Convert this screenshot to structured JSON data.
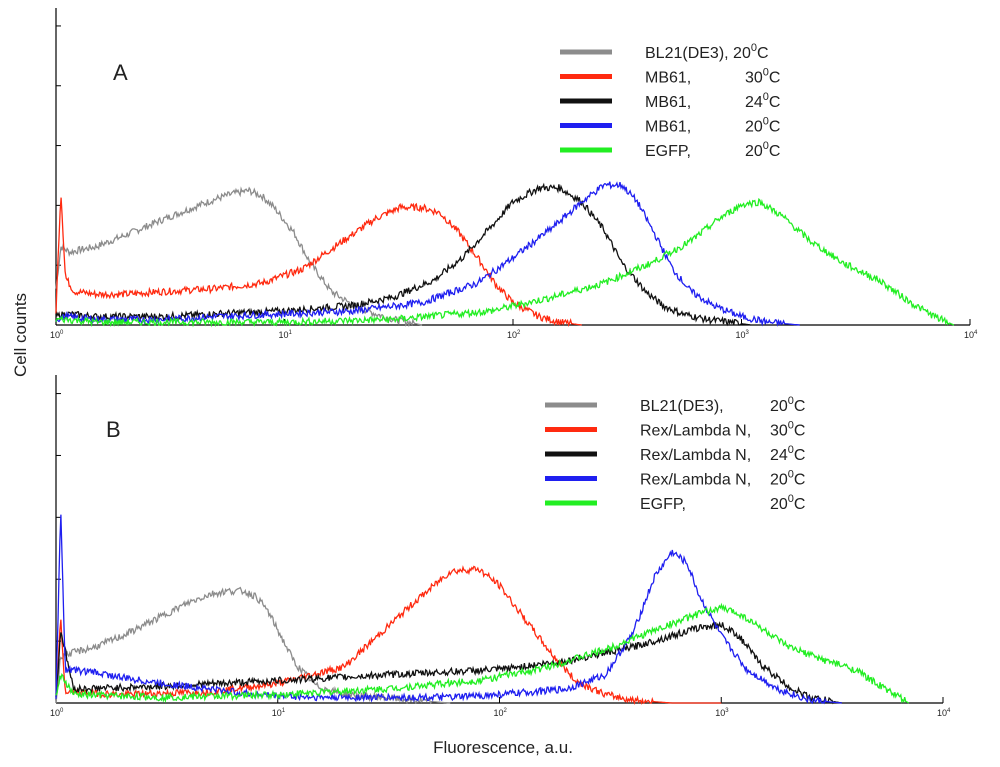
{
  "figure": {
    "ylabel": "Cell counts",
    "xlabel": "Fluorescence, a.u."
  },
  "chart_data": [
    {
      "type": "line",
      "panel_label": "A",
      "xscale": "log",
      "xlim": [
        1,
        10000
      ],
      "ylim": [
        0,
        1
      ],
      "x_tick_labels": [
        "10",
        "10",
        "10",
        "10",
        "10"
      ],
      "x_tick_exponents": [
        "0",
        "1",
        "2",
        "3",
        "4"
      ],
      "legend_position": "top-right",
      "grid": false,
      "series": [
        {
          "name": "BL21(DE3), 20",
          "name_sup": "0",
          "name_end": "C",
          "color": "#8c8c8c",
          "x": [
            1.0,
            1.05,
            1.15,
            1.3,
            1.5,
            2.0,
            3.0,
            4.0,
            5.0,
            6.0,
            7.0,
            8.0,
            9.0,
            11.0,
            13.0,
            16.0,
            20.0,
            25.0,
            30.0,
            40.0
          ],
          "y": [
            0.13,
            0.28,
            0.26,
            0.27,
            0.28,
            0.32,
            0.38,
            0.42,
            0.45,
            0.47,
            0.48,
            0.46,
            0.42,
            0.33,
            0.22,
            0.12,
            0.07,
            0.04,
            0.02,
            0.0
          ]
        },
        {
          "name": "MB61,",
          "name_sup": "0",
          "name_mid": "30",
          "name_end": "C",
          "color": "#ff2a10",
          "x": [
            1.0,
            1.05,
            1.1,
            1.2,
            1.5,
            2.0,
            3.0,
            5.0,
            8.0,
            12.0,
            18.0,
            25.0,
            32.0,
            40.0,
            48.0,
            58.0,
            70.0,
            85.0,
            100.0,
            130.0,
            160.0,
            200.0
          ],
          "y": [
            0.05,
            0.48,
            0.17,
            0.12,
            0.11,
            0.11,
            0.12,
            0.13,
            0.15,
            0.2,
            0.3,
            0.38,
            0.42,
            0.42,
            0.4,
            0.33,
            0.24,
            0.14,
            0.08,
            0.03,
            0.01,
            0.0
          ]
        },
        {
          "name": "MB61,",
          "name_sup": "0",
          "name_mid": "24",
          "name_end": "C",
          "color": "#111111",
          "x": [
            1.0,
            1.1,
            1.5,
            3.0,
            5.0,
            10.0,
            20.0,
            30.0,
            45.0,
            60.0,
            80.0,
            100.0,
            130.0,
            160.0,
            200.0,
            250.0,
            300.0,
            380.0,
            450.0,
            550.0,
            700.0,
            900.0,
            1100.0
          ],
          "y": [
            0.03,
            0.04,
            0.03,
            0.03,
            0.04,
            0.05,
            0.07,
            0.1,
            0.16,
            0.24,
            0.35,
            0.44,
            0.49,
            0.49,
            0.44,
            0.34,
            0.22,
            0.12,
            0.07,
            0.04,
            0.02,
            0.01,
            0.0
          ]
        },
        {
          "name": "MB61,",
          "name_sup": "0",
          "name_mid": "20",
          "name_end": "C",
          "color": "#1f1ff0",
          "x": [
            1.0,
            1.1,
            1.5,
            3.0,
            5.0,
            10.0,
            20.0,
            40.0,
            70.0,
            100.0,
            150.0,
            200.0,
            250.0,
            300.0,
            350.0,
            420.0,
            500.0,
            600.0,
            750.0,
            1000.0,
            1300.0,
            1800.0
          ],
          "y": [
            0.02,
            0.03,
            0.02,
            0.02,
            0.03,
            0.04,
            0.05,
            0.08,
            0.15,
            0.24,
            0.35,
            0.44,
            0.5,
            0.5,
            0.44,
            0.32,
            0.2,
            0.12,
            0.07,
            0.03,
            0.01,
            0.0
          ]
        },
        {
          "name": "EGFP,",
          "name_sup": "0",
          "name_mid": "20",
          "name_end": "C",
          "color": "#22ee22",
          "x": [
            1.0,
            1.1,
            1.5,
            3.0,
            10.0,
            30.0,
            80.0,
            150.0,
            250.0,
            400.0,
            600.0,
            800.0,
            1000.0,
            1200.0,
            1500.0,
            2000.0,
            2800.0,
            4000.0,
            5500.0,
            7000.0,
            8500.0
          ],
          "y": [
            0.02,
            0.02,
            0.01,
            0.01,
            0.01,
            0.02,
            0.05,
            0.1,
            0.15,
            0.22,
            0.3,
            0.38,
            0.43,
            0.44,
            0.39,
            0.3,
            0.22,
            0.16,
            0.08,
            0.03,
            0.0
          ]
        }
      ]
    },
    {
      "type": "line",
      "panel_label": "B",
      "xscale": "log",
      "xlim": [
        1,
        10000
      ],
      "ylim": [
        0,
        1
      ],
      "x_tick_labels": [
        "10",
        "10",
        "10",
        "10",
        "10"
      ],
      "x_tick_exponents": [
        "0",
        "1",
        "2",
        "3",
        "4"
      ],
      "legend_position": "top-right",
      "grid": false,
      "series": [
        {
          "name": "BL21(DE3),",
          "name_sup": "0",
          "name_mid": "20",
          "name_end": "C",
          "color": "#8c8c8c",
          "x": [
            1.0,
            1.05,
            1.2,
            1.5,
            2.0,
            3.0,
            4.0,
            5.0,
            6.0,
            7.0,
            8.0,
            9.0,
            10.0,
            12.0,
            15.0,
            20.0,
            30.0,
            40.0,
            60.0
          ],
          "y": [
            0.0,
            0.17,
            0.18,
            0.2,
            0.24,
            0.31,
            0.36,
            0.39,
            0.4,
            0.4,
            0.38,
            0.33,
            0.26,
            0.14,
            0.06,
            0.03,
            0.02,
            0.01,
            0.0
          ]
        },
        {
          "name": "Rex/Lambda N,",
          "name_sup": "0",
          "name_mid": "30",
          "name_end": "C",
          "color": "#ff2a10",
          "x": [
            1.0,
            1.05,
            1.1,
            2.0,
            5.0,
            10.0,
            20.0,
            40.0,
            60.0,
            80.0,
            100.0,
            130.0,
            170.0,
            220.0,
            300.0,
            400.0,
            600.0,
            1000.0
          ],
          "y": [
            0.02,
            0.3,
            0.04,
            0.03,
            0.04,
            0.07,
            0.13,
            0.35,
            0.47,
            0.48,
            0.42,
            0.3,
            0.18,
            0.08,
            0.03,
            0.01,
            0.0,
            0.0
          ]
        },
        {
          "name": "Rex/Lambda N,",
          "name_sup": "0",
          "name_mid": "24",
          "name_end": "C",
          "color": "#111111",
          "x": [
            1.0,
            1.05,
            1.2,
            3.0,
            10.0,
            30.0,
            100.0,
            200.0,
            400.0,
            600.0,
            800.0,
            1000.0,
            1200.0,
            1500.0,
            2000.0,
            2500.0,
            3500.0
          ],
          "y": [
            0.02,
            0.26,
            0.05,
            0.06,
            0.08,
            0.1,
            0.12,
            0.15,
            0.2,
            0.24,
            0.27,
            0.28,
            0.24,
            0.14,
            0.06,
            0.02,
            0.0
          ]
        },
        {
          "name": "Rex/Lambda N,",
          "name_sup": "0",
          "name_mid": "20",
          "name_end": "C",
          "color": "#1f1ff0",
          "x": [
            1.0,
            1.05,
            1.1,
            1.5,
            2.0,
            3.0,
            5.0,
            8.0,
            15.0,
            30.0,
            60.0,
            100.0,
            200.0,
            300.0,
            400.0,
            500.0,
            600.0,
            700.0,
            800.0,
            1000.0,
            1300.0,
            1800.0,
            2500.0,
            3500.0
          ],
          "y": [
            0.02,
            0.7,
            0.12,
            0.11,
            0.09,
            0.07,
            0.05,
            0.03,
            0.02,
            0.02,
            0.02,
            0.03,
            0.05,
            0.1,
            0.25,
            0.45,
            0.54,
            0.5,
            0.38,
            0.24,
            0.12,
            0.05,
            0.01,
            0.0
          ]
        },
        {
          "name": "EGFP,",
          "name_sup": "0",
          "name_mid": "20",
          "name_end": "C",
          "color": "#22ee22",
          "x": [
            1.0,
            1.05,
            1.2,
            3.0,
            10.0,
            30.0,
            80.0,
            150.0,
            300.0,
            500.0,
            800.0,
            1000.0,
            1200.0,
            1500.0,
            2000.0,
            3000.0,
            4000.0,
            5000.0,
            7000.0
          ],
          "y": [
            0.02,
            0.1,
            0.03,
            0.02,
            0.03,
            0.05,
            0.08,
            0.12,
            0.19,
            0.26,
            0.32,
            0.34,
            0.32,
            0.27,
            0.2,
            0.15,
            0.12,
            0.07,
            0.0
          ]
        }
      ]
    }
  ]
}
